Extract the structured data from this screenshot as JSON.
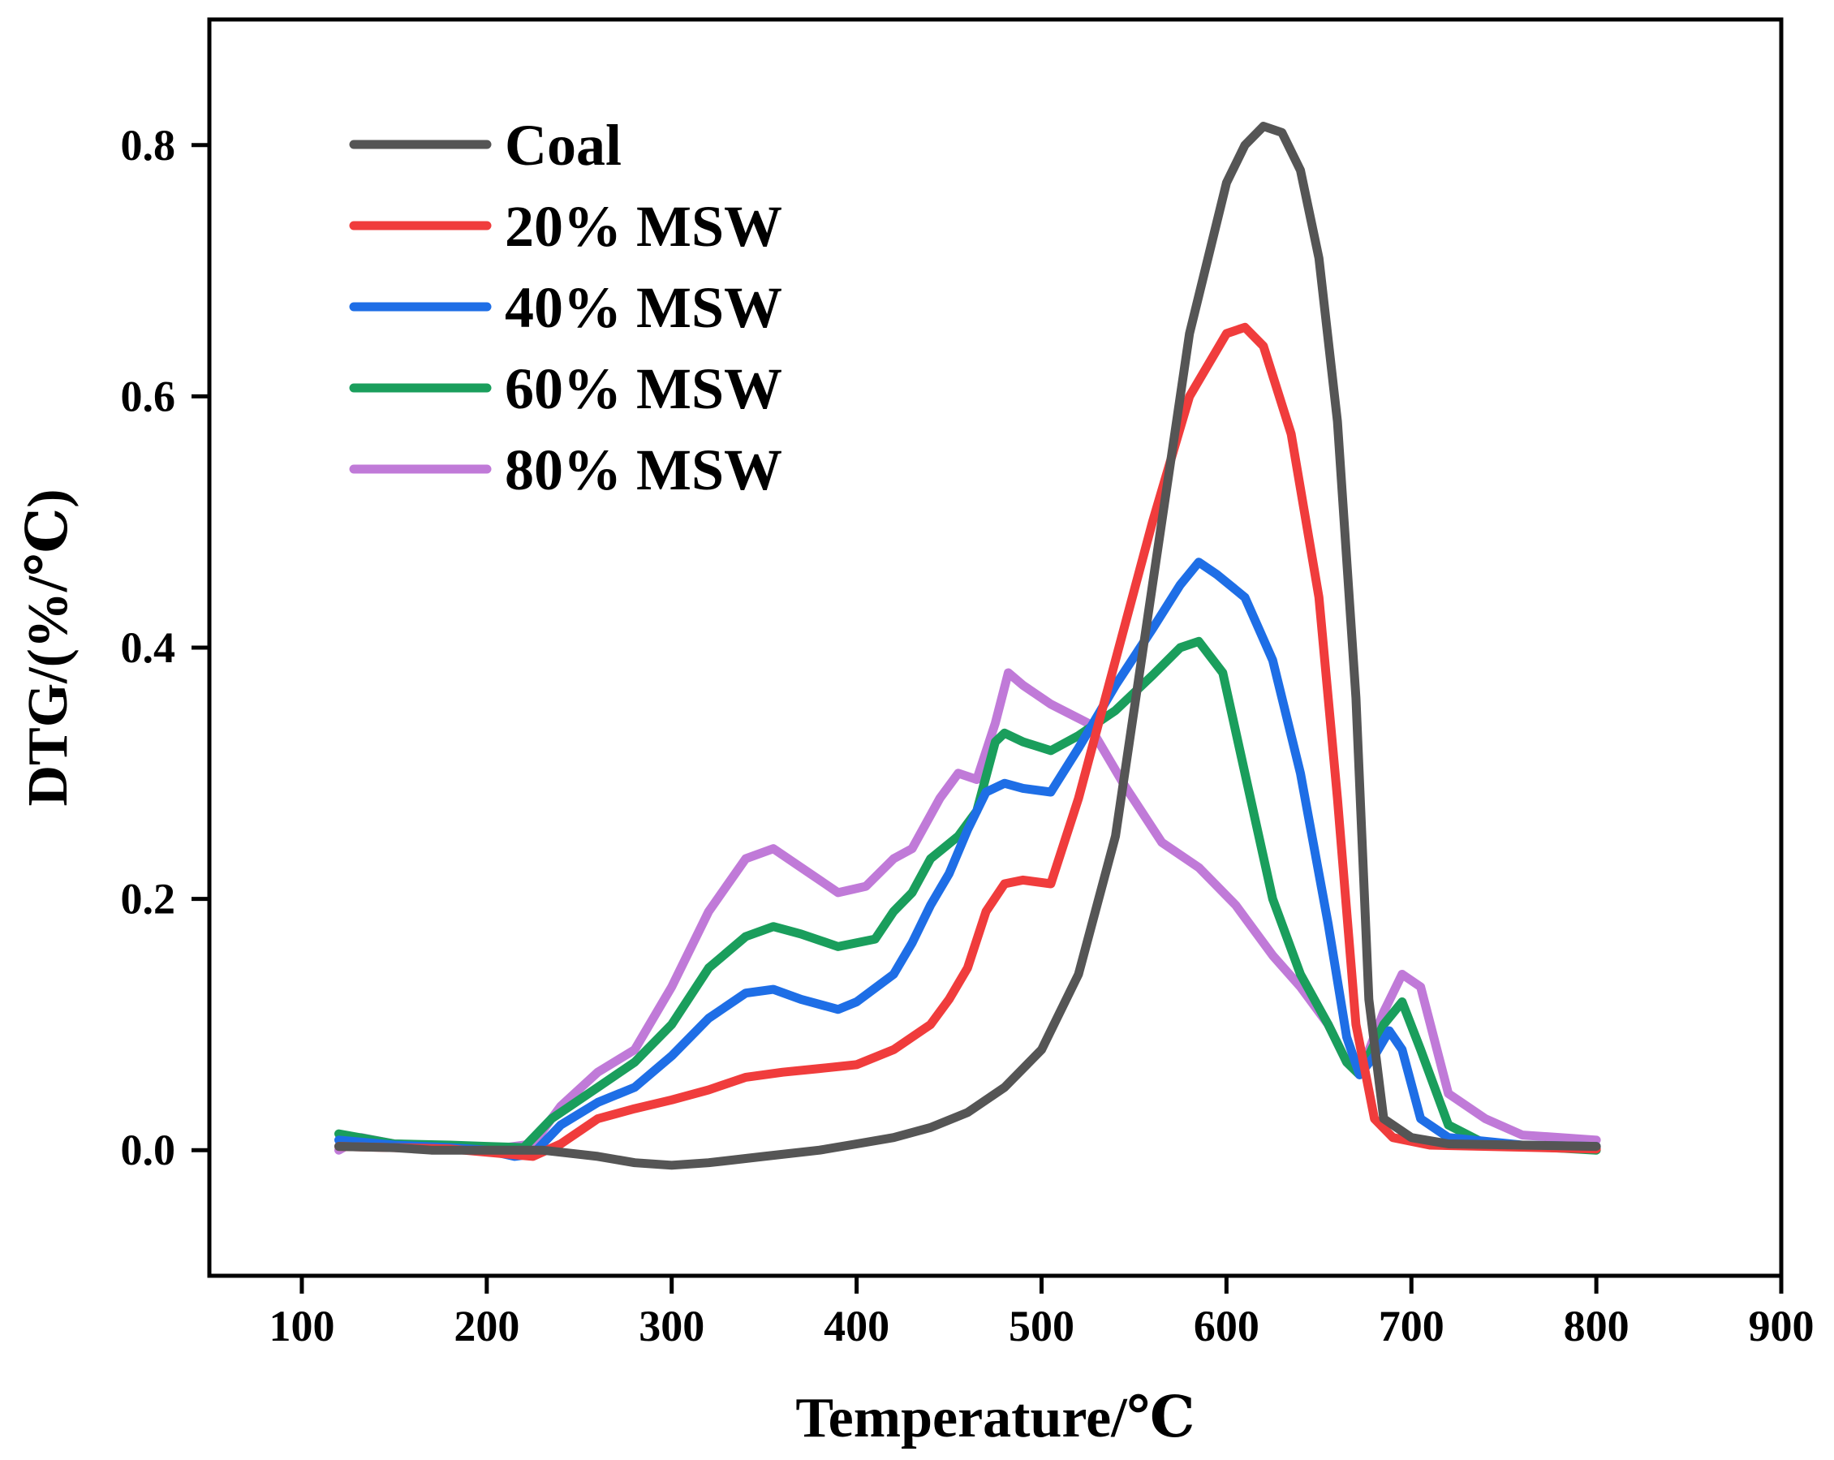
{
  "chart_data": {
    "type": "line",
    "title": "",
    "xlabel": "Temperature/℃",
    "ylabel": "DTG/(%/℃)",
    "xlim": [
      50,
      900
    ],
    "ylim": [
      -0.1,
      0.9
    ],
    "xticks": [
      100,
      200,
      300,
      400,
      500,
      600,
      700,
      800,
      900
    ],
    "xtick_labels": [
      "100",
      "200",
      "300",
      "400",
      "500",
      "600",
      "700",
      "800",
      "900"
    ],
    "yticks": [
      0.0,
      0.2,
      0.4,
      0.6,
      0.8
    ],
    "ytick_labels": [
      "0.0",
      "0.2",
      "0.4",
      "0.6",
      "0.8"
    ],
    "legend_position": "top-left",
    "series": [
      {
        "name": "Coal",
        "color": "#555555",
        "points": [
          [
            120,
            0.003
          ],
          [
            150,
            0.002
          ],
          [
            170,
            0.0
          ],
          [
            200,
            0.0
          ],
          [
            230,
            0.0
          ],
          [
            260,
            -0.005
          ],
          [
            280,
            -0.01
          ],
          [
            300,
            -0.012
          ],
          [
            320,
            -0.01
          ],
          [
            350,
            -0.005
          ],
          [
            380,
            0.0
          ],
          [
            400,
            0.005
          ],
          [
            420,
            0.01
          ],
          [
            440,
            0.018
          ],
          [
            460,
            0.03
          ],
          [
            480,
            0.05
          ],
          [
            500,
            0.08
          ],
          [
            520,
            0.14
          ],
          [
            540,
            0.25
          ],
          [
            560,
            0.45
          ],
          [
            580,
            0.65
          ],
          [
            600,
            0.77
          ],
          [
            610,
            0.8
          ],
          [
            620,
            0.815
          ],
          [
            630,
            0.81
          ],
          [
            640,
            0.78
          ],
          [
            650,
            0.71
          ],
          [
            660,
            0.58
          ],
          [
            670,
            0.36
          ],
          [
            677,
            0.12
          ],
          [
            685,
            0.025
          ],
          [
            700,
            0.01
          ],
          [
            720,
            0.005
          ],
          [
            760,
            0.004
          ],
          [
            800,
            0.003
          ]
        ]
      },
      {
        "name": "20% MSW",
        "color": "#f03c3c",
        "points": [
          [
            120,
            0.003
          ],
          [
            150,
            0.002
          ],
          [
            180,
            0.001
          ],
          [
            210,
            -0.003
          ],
          [
            225,
            -0.005
          ],
          [
            240,
            0.005
          ],
          [
            260,
            0.025
          ],
          [
            280,
            0.033
          ],
          [
            300,
            0.04
          ],
          [
            320,
            0.048
          ],
          [
            340,
            0.058
          ],
          [
            360,
            0.062
          ],
          [
            380,
            0.065
          ],
          [
            400,
            0.068
          ],
          [
            420,
            0.08
          ],
          [
            440,
            0.1
          ],
          [
            450,
            0.12
          ],
          [
            460,
            0.145
          ],
          [
            470,
            0.19
          ],
          [
            480,
            0.212
          ],
          [
            490,
            0.215
          ],
          [
            505,
            0.212
          ],
          [
            520,
            0.28
          ],
          [
            540,
            0.39
          ],
          [
            560,
            0.5
          ],
          [
            580,
            0.6
          ],
          [
            600,
            0.65
          ],
          [
            610,
            0.655
          ],
          [
            620,
            0.64
          ],
          [
            635,
            0.57
          ],
          [
            650,
            0.44
          ],
          [
            660,
            0.28
          ],
          [
            670,
            0.1
          ],
          [
            680,
            0.025
          ],
          [
            690,
            0.01
          ],
          [
            710,
            0.004
          ],
          [
            800,
            0.001
          ]
        ]
      },
      {
        "name": "40% MSW",
        "color": "#1e6ee6",
        "points": [
          [
            120,
            0.008
          ],
          [
            150,
            0.004
          ],
          [
            180,
            0.002
          ],
          [
            200,
            0.0
          ],
          [
            215,
            -0.005
          ],
          [
            225,
            -0.003
          ],
          [
            240,
            0.02
          ],
          [
            260,
            0.038
          ],
          [
            280,
            0.05
          ],
          [
            300,
            0.075
          ],
          [
            320,
            0.105
          ],
          [
            340,
            0.125
          ],
          [
            355,
            0.128
          ],
          [
            370,
            0.12
          ],
          [
            390,
            0.112
          ],
          [
            400,
            0.118
          ],
          [
            420,
            0.14
          ],
          [
            430,
            0.165
          ],
          [
            440,
            0.195
          ],
          [
            450,
            0.22
          ],
          [
            460,
            0.255
          ],
          [
            470,
            0.285
          ],
          [
            480,
            0.292
          ],
          [
            490,
            0.288
          ],
          [
            505,
            0.285
          ],
          [
            520,
            0.32
          ],
          [
            540,
            0.37
          ],
          [
            560,
            0.415
          ],
          [
            575,
            0.45
          ],
          [
            585,
            0.468
          ],
          [
            595,
            0.458
          ],
          [
            610,
            0.44
          ],
          [
            625,
            0.39
          ],
          [
            640,
            0.3
          ],
          [
            655,
            0.18
          ],
          [
            665,
            0.09
          ],
          [
            672,
            0.06
          ],
          [
            680,
            0.075
          ],
          [
            688,
            0.095
          ],
          [
            695,
            0.08
          ],
          [
            705,
            0.025
          ],
          [
            720,
            0.01
          ],
          [
            760,
            0.004
          ],
          [
            800,
            0.003
          ]
        ]
      },
      {
        "name": "60% MSW",
        "color": "#1a9e5c",
        "points": [
          [
            120,
            0.013
          ],
          [
            150,
            0.005
          ],
          [
            180,
            0.004
          ],
          [
            200,
            0.003
          ],
          [
            220,
            0.002
          ],
          [
            235,
            0.025
          ],
          [
            260,
            0.05
          ],
          [
            280,
            0.07
          ],
          [
            300,
            0.1
          ],
          [
            320,
            0.145
          ],
          [
            340,
            0.17
          ],
          [
            355,
            0.178
          ],
          [
            370,
            0.172
          ],
          [
            390,
            0.162
          ],
          [
            410,
            0.168
          ],
          [
            420,
            0.19
          ],
          [
            430,
            0.205
          ],
          [
            440,
            0.232
          ],
          [
            455,
            0.25
          ],
          [
            465,
            0.27
          ],
          [
            475,
            0.325
          ],
          [
            480,
            0.332
          ],
          [
            490,
            0.325
          ],
          [
            505,
            0.318
          ],
          [
            520,
            0.33
          ],
          [
            540,
            0.35
          ],
          [
            560,
            0.378
          ],
          [
            575,
            0.4
          ],
          [
            585,
            0.405
          ],
          [
            598,
            0.38
          ],
          [
            610,
            0.3
          ],
          [
            625,
            0.2
          ],
          [
            640,
            0.14
          ],
          [
            655,
            0.1
          ],
          [
            665,
            0.07
          ],
          [
            672,
            0.06
          ],
          [
            685,
            0.1
          ],
          [
            695,
            0.118
          ],
          [
            705,
            0.08
          ],
          [
            720,
            0.02
          ],
          [
            740,
            0.005
          ],
          [
            800,
            0.0
          ]
        ]
      },
      {
        "name": "80% MSW",
        "color": "#c07ad8",
        "points": [
          [
            120,
            0.0
          ],
          [
            132,
            0.01
          ],
          [
            150,
            0.005
          ],
          [
            180,
            0.003
          ],
          [
            210,
            0.002
          ],
          [
            225,
            0.005
          ],
          [
            240,
            0.035
          ],
          [
            260,
            0.062
          ],
          [
            280,
            0.08
          ],
          [
            300,
            0.13
          ],
          [
            320,
            0.19
          ],
          [
            340,
            0.232
          ],
          [
            355,
            0.24
          ],
          [
            370,
            0.225
          ],
          [
            390,
            0.205
          ],
          [
            405,
            0.21
          ],
          [
            420,
            0.232
          ],
          [
            430,
            0.24
          ],
          [
            445,
            0.28
          ],
          [
            455,
            0.3
          ],
          [
            465,
            0.295
          ],
          [
            475,
            0.34
          ],
          [
            482,
            0.38
          ],
          [
            490,
            0.37
          ],
          [
            505,
            0.355
          ],
          [
            525,
            0.34
          ],
          [
            545,
            0.29
          ],
          [
            565,
            0.245
          ],
          [
            585,
            0.225
          ],
          [
            605,
            0.195
          ],
          [
            625,
            0.155
          ],
          [
            640,
            0.13
          ],
          [
            655,
            0.1
          ],
          [
            665,
            0.07
          ],
          [
            672,
            0.06
          ],
          [
            685,
            0.11
          ],
          [
            695,
            0.14
          ],
          [
            705,
            0.13
          ],
          [
            720,
            0.045
          ],
          [
            740,
            0.025
          ],
          [
            760,
            0.012
          ],
          [
            800,
            0.008
          ]
        ]
      }
    ]
  }
}
